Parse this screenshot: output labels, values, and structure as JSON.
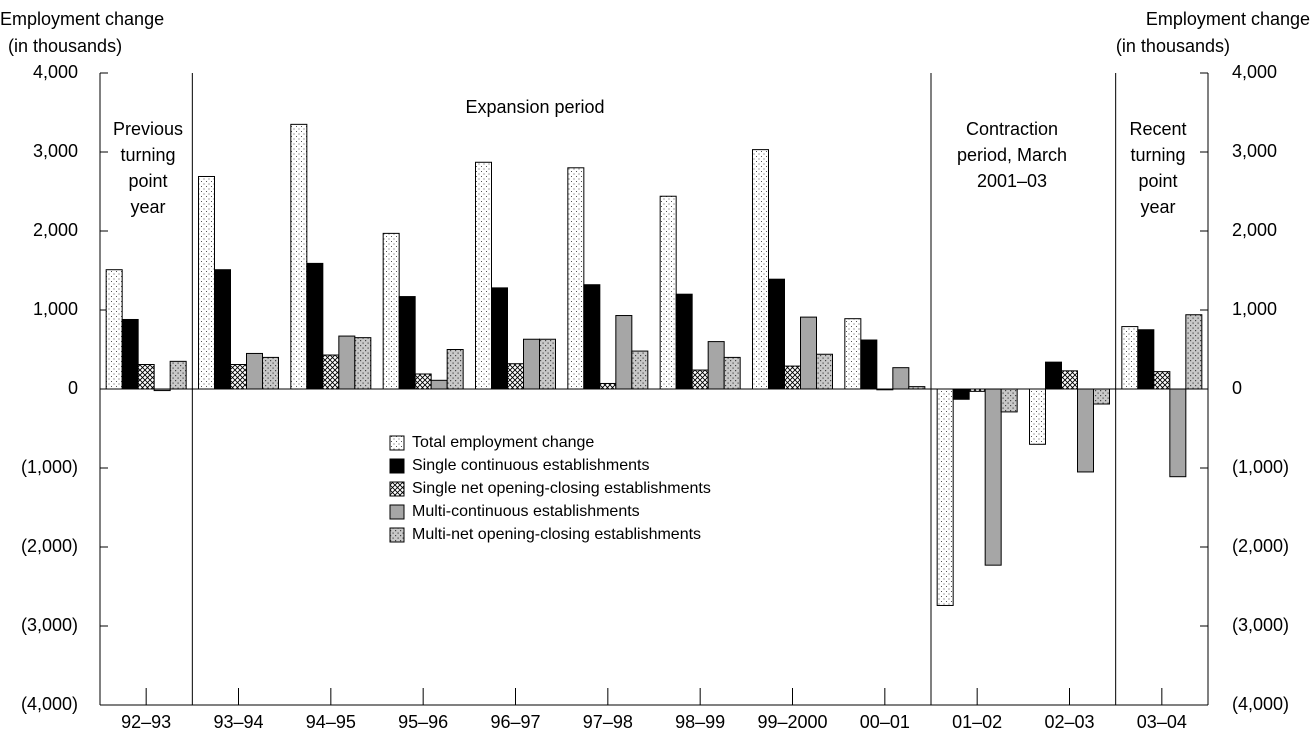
{
  "chart_data": {
    "type": "bar",
    "y_label": [
      "Employment change",
      "(in thousands)"
    ],
    "y2_label": [
      "Employment change",
      "(in thousands)"
    ],
    "categories": [
      "92–93",
      "93–94",
      "94–95",
      "95–96",
      "96–97",
      "97–98",
      "98–99",
      "99–2000",
      "00–01",
      "01–02",
      "02–03",
      "03–04"
    ],
    "series": [
      {
        "name": "Total employment change",
        "color": "#ffffff",
        "pattern": "dots",
        "values": [
          1510,
          2690,
          3350,
          1970,
          2870,
          2800,
          2440,
          3030,
          890,
          -2740,
          -700,
          790
        ]
      },
      {
        "name": "Single continuous establishments",
        "color": "#000000",
        "pattern": "solid",
        "values": [
          880,
          1510,
          1590,
          1170,
          1280,
          1320,
          1200,
          1390,
          620,
          -130,
          340,
          750
        ]
      },
      {
        "name": "Single net opening-closing establishments",
        "color": "#ffffff",
        "pattern": "crosshatch",
        "values": [
          310,
          310,
          430,
          190,
          320,
          70,
          240,
          290,
          -10,
          -30,
          230,
          220
        ]
      },
      {
        "name": "Multi-continuous establishments",
        "color": "#a6a6a6",
        "pattern": "solid",
        "values": [
          -20,
          450,
          670,
          110,
          630,
          930,
          600,
          910,
          270,
          -2230,
          -1050,
          -1110
        ]
      },
      {
        "name": "Multi-net opening-closing establishments",
        "color": "#c8c8c8",
        "pattern": "dense-dots",
        "values": [
          350,
          400,
          650,
          500,
          630,
          480,
          400,
          440,
          30,
          -290,
          -190,
          940
        ]
      }
    ],
    "ylim": [
      -4000,
      4000
    ],
    "yticks": [
      {
        "value": -4000,
        "label": "(4,000)"
      },
      {
        "value": -3000,
        "label": "(3,000)"
      },
      {
        "value": -2000,
        "label": "(2,000)"
      },
      {
        "value": -1000,
        "label": "(1,000)"
      },
      0,
      {
        "value": 1000,
        "label": "1,000"
      },
      {
        "value": 2000,
        "label": "2,000"
      },
      {
        "value": 3000,
        "label": "3,000"
      },
      {
        "value": 4000,
        "label": "4,000"
      }
    ],
    "annotations": [
      {
        "lines": [
          "Expansion period"
        ]
      },
      {
        "lines": [
          "Previous",
          "turning",
          "point",
          "year"
        ]
      },
      {
        "lines": [
          "Contraction",
          "period, March",
          "2001–03"
        ]
      },
      {
        "lines": [
          "Recent",
          "turning",
          "point",
          "year"
        ]
      }
    ],
    "legend": "center"
  }
}
